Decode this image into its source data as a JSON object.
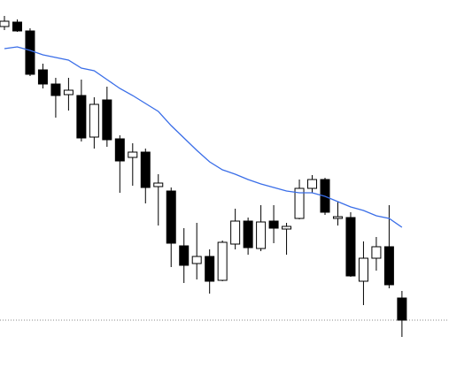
{
  "chart_data": {
    "type": "candlestick",
    "open": [
      385,
      390,
      380,
      336,
      320,
      308,
      307,
      260,
      302,
      258,
      237,
      243,
      204,
      199,
      137,
      117,
      125,
      98,
      139,
      165,
      134,
      165,
      156,
      168,
      202,
      212,
      168,
      169,
      97,
      123,
      136,
      78
    ],
    "high": [
      397,
      393,
      383,
      343,
      327,
      327,
      325,
      305,
      317,
      262,
      253,
      247,
      218,
      203,
      157,
      163,
      133,
      143,
      179,
      169,
      183,
      183,
      163,
      212,
      217,
      214,
      187,
      175,
      142,
      147,
      183,
      86
    ],
    "low": [
      381,
      379,
      329,
      315,
      282,
      290,
      255,
      247,
      249,
      197,
      205,
      185,
      160,
      113,
      95,
      99,
      83,
      97,
      133,
      127,
      131,
      140,
      127,
      167,
      197,
      172,
      160,
      102,
      70,
      109,
      89,
      34
    ],
    "close": [
      391,
      380,
      331,
      320,
      307,
      313,
      259,
      297,
      257,
      233,
      243,
      203,
      208,
      140,
      115,
      125,
      97,
      141,
      165,
      135,
      164,
      157,
      159,
      202,
      212,
      175,
      170,
      103,
      123,
      136,
      93,
      53
    ],
    "moving_average": {
      "color": "#3a6ee8",
      "values": [
        360,
        362,
        358,
        353,
        350,
        347,
        338,
        335,
        325,
        315,
        307,
        298,
        289,
        273,
        259,
        245,
        232,
        223,
        218,
        212,
        207,
        203,
        199,
        197,
        197,
        193,
        187,
        181,
        177,
        171,
        168,
        158
      ]
    },
    "price_line": 53,
    "up_color": "#ffffff",
    "down_color": "#000000",
    "ylim": [
      0,
      415
    ]
  }
}
